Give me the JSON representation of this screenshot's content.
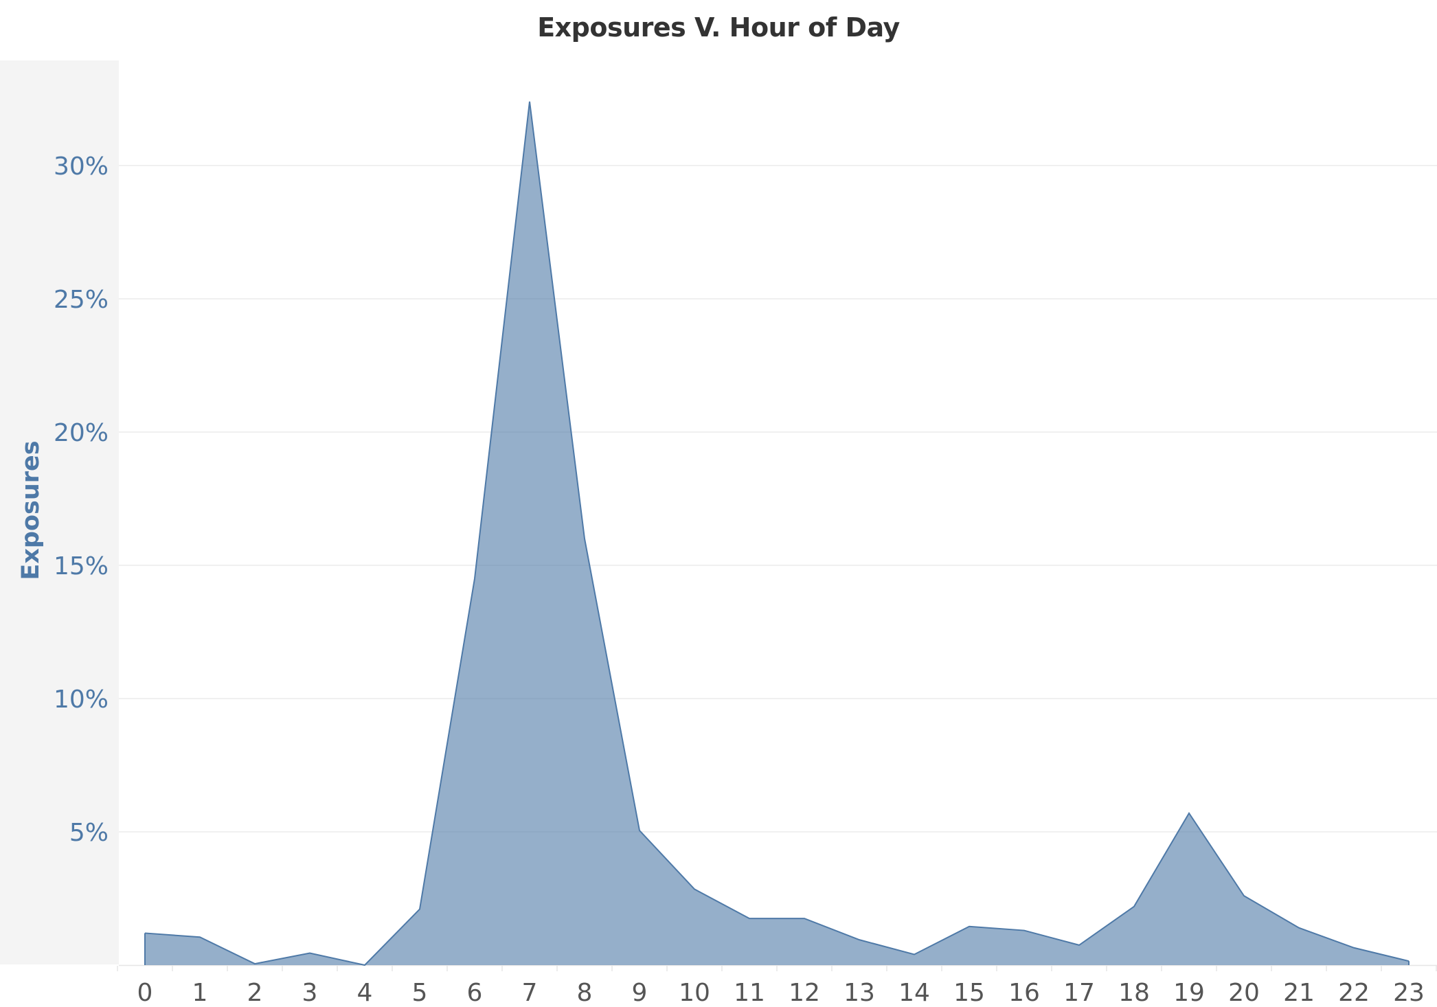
{
  "chart_data": {
    "type": "area",
    "title": "Exposures  V. Hour of Day",
    "xlabel": "",
    "ylabel": "Exposures",
    "categories": [
      "0",
      "1",
      "2",
      "3",
      "4",
      "5",
      "6",
      "7",
      "8",
      "9",
      "10",
      "11",
      "12",
      "13",
      "14",
      "15",
      "16",
      "17",
      "18",
      "19",
      "20",
      "21",
      "22",
      "23"
    ],
    "values": [
      1.2,
      1.05,
      0.05,
      0.45,
      0.0,
      2.1,
      14.5,
      32.4,
      16.0,
      5.05,
      2.85,
      1.75,
      1.75,
      0.95,
      0.4,
      1.45,
      1.3,
      0.75,
      2.2,
      5.7,
      2.6,
      1.4,
      0.65,
      0.15
    ],
    "ylim": [
      0,
      32.5
    ],
    "yticks": [
      5,
      10,
      15,
      20,
      25,
      30
    ],
    "ytick_labels": [
      "5%",
      "10%",
      "15%",
      "20%",
      "25%",
      "30%"
    ],
    "grid": true,
    "color": "#4e79a7"
  }
}
